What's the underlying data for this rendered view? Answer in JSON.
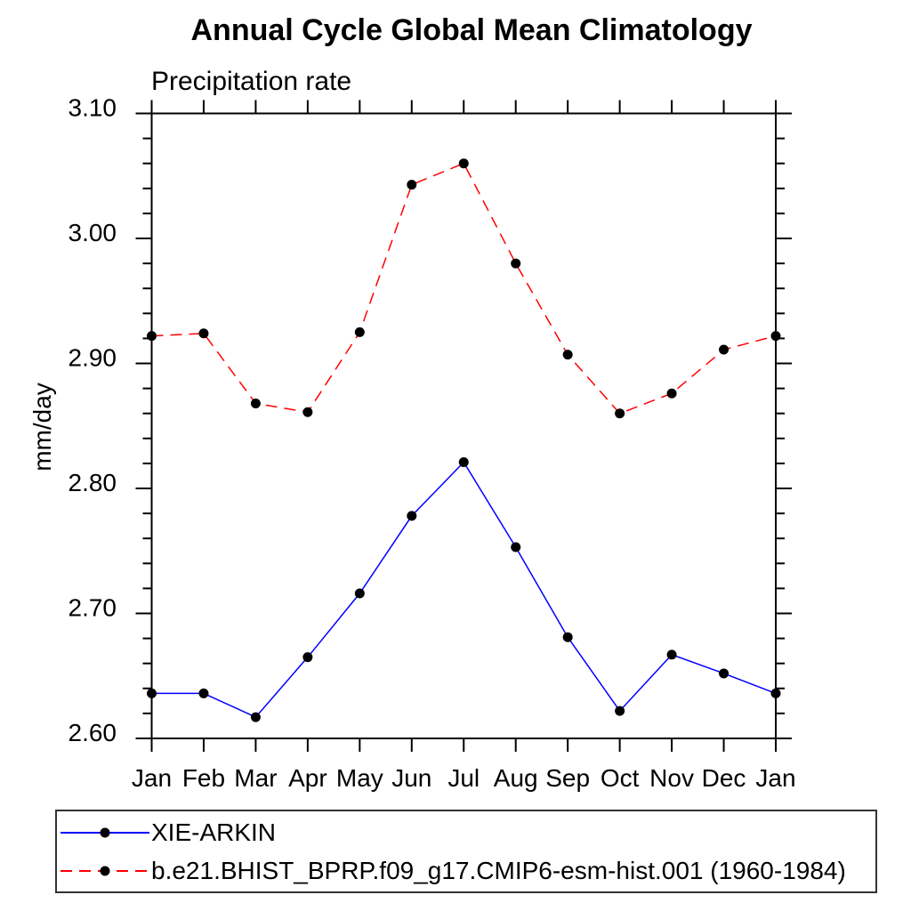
{
  "title": "Annual Cycle Global Mean Climatology",
  "subtitle": "Precipitation rate",
  "chart_data": {
    "type": "line",
    "x_categories": [
      "Jan",
      "Feb",
      "Mar",
      "Apr",
      "May",
      "Jun",
      "Jul",
      "Aug",
      "Sep",
      "Oct",
      "Nov",
      "Dec",
      "Jan"
    ],
    "xlabel": "",
    "ylabel": "mm/day",
    "ylim": [
      2.6,
      3.1
    ],
    "y_major_step": 0.1,
    "y_minor_step": 0.02,
    "y_tick_labels": [
      "2.60",
      "2.70",
      "2.80",
      "2.90",
      "3.00",
      "3.10"
    ],
    "grid": false,
    "legend_position": "bottom-left-box",
    "axis_color": "#000000",
    "marker_shape": "filled-circle",
    "series": [
      {
        "name": "XIE-ARKIN",
        "color": "#0000ff",
        "line_style": "solid",
        "marker_color": "#000000",
        "values": [
          2.636,
          2.636,
          2.617,
          2.665,
          2.716,
          2.778,
          2.821,
          2.753,
          2.681,
          2.622,
          2.667,
          2.652,
          2.636
        ]
      },
      {
        "name": "b.e21.BHIST_BPRP.f09_g17.CMIP6-esm-hist.001 (1960-1984)",
        "color": "#ff0000",
        "line_style": "dashed",
        "marker_color": "#000000",
        "values": [
          2.922,
          2.924,
          2.868,
          2.861,
          2.925,
          3.043,
          3.06,
          2.98,
          2.907,
          2.86,
          2.876,
          2.911,
          2.922
        ]
      }
    ]
  }
}
